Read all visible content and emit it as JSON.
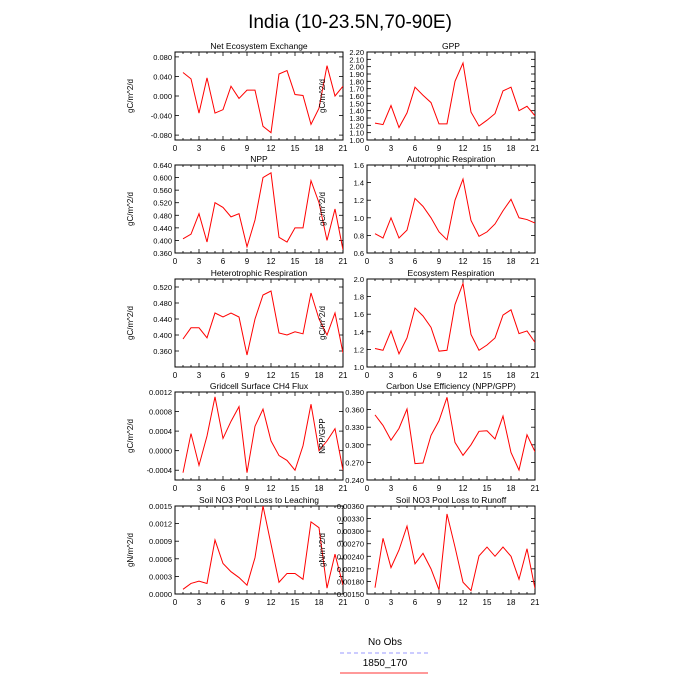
{
  "title": "India (10-23.5N,70-90E)",
  "legend": {
    "entries": [
      {
        "label": "No Obs",
        "color": "#9999ff",
        "dashed": true
      },
      {
        "label": "1850_170",
        "color": "#ff3333",
        "dashed": false
      }
    ],
    "placement": "bottom-center"
  },
  "colors": {
    "series": "#ff0000",
    "axis": "#000000"
  },
  "chart_data": [
    {
      "type": "line",
      "title": "Net Ecosystem Exchange",
      "ylabel": "gC/m^2/d",
      "x": [
        1,
        2,
        3,
        4,
        5,
        6,
        7,
        8,
        9,
        10,
        11,
        12,
        13,
        14,
        15,
        16,
        17,
        18,
        19,
        20,
        21
      ],
      "values": [
        0.048,
        0.035,
        -0.035,
        0.037,
        -0.035,
        -0.028,
        0.02,
        -0.005,
        0.012,
        0.012,
        -0.062,
        -0.075,
        0.045,
        0.052,
        0.003,
        0.001,
        -0.058,
        -0.025,
        0.062,
        0.0,
        0.02
      ],
      "xlim": [
        0,
        21
      ],
      "ylim": [
        -0.09,
        0.09
      ],
      "xticks": [
        0,
        3,
        6,
        9,
        12,
        15,
        18,
        21
      ],
      "yticks": [
        -0.08,
        -0.04,
        0,
        0.04,
        0.08
      ],
      "ytick_labels": [
        "-0.080",
        "-0.040",
        "0.000",
        "0.040",
        "0.080"
      ]
    },
    {
      "type": "line",
      "title": "GPP",
      "ylabel": "gC/m^2/d",
      "x": [
        1,
        2,
        3,
        4,
        5,
        6,
        7,
        8,
        9,
        10,
        11,
        12,
        13,
        14,
        15,
        16,
        17,
        18,
        19,
        20,
        21
      ],
      "values": [
        1.23,
        1.21,
        1.47,
        1.17,
        1.37,
        1.72,
        1.61,
        1.51,
        1.22,
        1.22,
        1.8,
        2.05,
        1.38,
        1.19,
        1.27,
        1.36,
        1.67,
        1.72,
        1.4,
        1.46,
        1.33
      ],
      "xlim": [
        0,
        21
      ],
      "ylim": [
        1.0,
        2.2
      ],
      "xticks": [
        0,
        3,
        6,
        9,
        12,
        15,
        18,
        21
      ],
      "yticks": [
        1.0,
        1.1,
        1.2,
        1.3,
        1.4,
        1.5,
        1.6,
        1.7,
        1.8,
        1.9,
        2.0,
        2.1,
        2.2
      ],
      "ytick_labels": [
        "1.00",
        "1.10",
        "1.20",
        "1.30",
        "1.40",
        "1.50",
        "1.60",
        "1.70",
        "1.80",
        "1.90",
        "2.00",
        "2.10",
        "2.20"
      ]
    },
    {
      "type": "line",
      "title": "NPP",
      "ylabel": "gC/m^2/d",
      "x": [
        1,
        2,
        3,
        4,
        5,
        6,
        7,
        8,
        9,
        10,
        11,
        12,
        13,
        14,
        15,
        16,
        17,
        18,
        19,
        20,
        21
      ],
      "values": [
        0.405,
        0.42,
        0.485,
        0.395,
        0.52,
        0.505,
        0.475,
        0.485,
        0.38,
        0.465,
        0.6,
        0.615,
        0.41,
        0.395,
        0.44,
        0.44,
        0.59,
        0.52,
        0.4,
        0.5,
        0.37
      ],
      "xlim": [
        0,
        21
      ],
      "ylim": [
        0.36,
        0.64
      ],
      "xticks": [
        0,
        3,
        6,
        9,
        12,
        15,
        18,
        21
      ],
      "yticks": [
        0.36,
        0.4,
        0.44,
        0.48,
        0.52,
        0.56,
        0.6,
        0.64
      ],
      "ytick_labels": [
        "0.360",
        "0.400",
        "0.440",
        "0.480",
        "0.520",
        "0.560",
        "0.600",
        "0.640"
      ]
    },
    {
      "type": "line",
      "title": "Autotrophic Respiration",
      "ylabel": "gC/m^2/d",
      "x": [
        1,
        2,
        3,
        4,
        5,
        6,
        7,
        8,
        9,
        10,
        11,
        12,
        13,
        14,
        15,
        16,
        17,
        18,
        19,
        20,
        21
      ],
      "values": [
        0.82,
        0.77,
        1.0,
        0.77,
        0.86,
        1.22,
        1.13,
        1.0,
        0.84,
        0.75,
        1.2,
        1.44,
        0.97,
        0.79,
        0.84,
        0.93,
        1.08,
        1.21,
        1.0,
        0.98,
        0.94
      ],
      "xlim": [
        0,
        21
      ],
      "ylim": [
        0.6,
        1.6
      ],
      "xticks": [
        0,
        3,
        6,
        9,
        12,
        15,
        18,
        21
      ],
      "yticks": [
        0.6,
        0.8,
        1.0,
        1.2,
        1.4,
        1.6
      ],
      "ytick_labels": [
        "0.6",
        "0.8",
        "1.0",
        "1.2",
        "1.4",
        "1.6"
      ]
    },
    {
      "type": "line",
      "title": "Heterotrophic Respiration",
      "ylabel": "gC/m^2/d",
      "x": [
        1,
        2,
        3,
        4,
        5,
        6,
        7,
        8,
        9,
        10,
        11,
        12,
        13,
        14,
        15,
        16,
        17,
        18,
        19,
        20,
        21
      ],
      "values": [
        0.39,
        0.418,
        0.418,
        0.393,
        0.455,
        0.445,
        0.455,
        0.445,
        0.35,
        0.44,
        0.5,
        0.51,
        0.405,
        0.4,
        0.408,
        0.403,
        0.505,
        0.44,
        0.4,
        0.455,
        0.355
      ],
      "xlim": [
        0,
        21
      ],
      "ylim": [
        0.32,
        0.54
      ],
      "xticks": [
        0,
        3,
        6,
        9,
        12,
        15,
        18,
        21
      ],
      "yticks": [
        0.36,
        0.4,
        0.44,
        0.48,
        0.52
      ],
      "ytick_labels": [
        "0.360",
        "0.400",
        "0.440",
        "0.480",
        "0.520"
      ]
    },
    {
      "type": "line",
      "title": "Ecosystem Respiration",
      "ylabel": "gC/m^2/d",
      "x": [
        1,
        2,
        3,
        4,
        5,
        6,
        7,
        8,
        9,
        10,
        11,
        12,
        13,
        14,
        15,
        16,
        17,
        18,
        19,
        20,
        21
      ],
      "values": [
        1.21,
        1.19,
        1.41,
        1.15,
        1.33,
        1.67,
        1.58,
        1.45,
        1.18,
        1.19,
        1.71,
        1.95,
        1.37,
        1.19,
        1.25,
        1.33,
        1.59,
        1.65,
        1.38,
        1.41,
        1.28
      ],
      "xlim": [
        0,
        21
      ],
      "ylim": [
        1.0,
        2.0
      ],
      "xticks": [
        0,
        3,
        6,
        9,
        12,
        15,
        18,
        21
      ],
      "yticks": [
        1.0,
        1.2,
        1.4,
        1.6,
        1.8,
        2.0
      ],
      "ytick_labels": [
        "1.0",
        "1.2",
        "1.4",
        "1.6",
        "1.8",
        "2.0"
      ]
    },
    {
      "type": "line",
      "title": "Gridcell Surface CH4 Flux",
      "ylabel": "gC/m^2/d",
      "x": [
        1,
        2,
        3,
        4,
        5,
        6,
        7,
        8,
        9,
        10,
        11,
        12,
        13,
        14,
        15,
        16,
        17,
        18,
        19,
        20,
        21
      ],
      "values": [
        -0.00045,
        0.00035,
        -0.0003,
        0.0003,
        0.0011,
        0.00025,
        0.0006,
        0.0009,
        -0.00045,
        0.0005,
        0.00085,
        0.0002,
        -0.0001,
        -0.0002,
        -0.0004,
        0.0001,
        0.00095,
        0.0,
        0.0002,
        0.00045,
        -0.0004
      ],
      "xlim": [
        0,
        21
      ],
      "ylim": [
        -0.0006,
        0.0012
      ],
      "xticks": [
        0,
        3,
        6,
        9,
        12,
        15,
        18,
        21
      ],
      "yticks": [
        -0.0004,
        0,
        0.0004,
        0.0008,
        0.0012
      ],
      "ytick_labels": [
        "-0.0004",
        "0.0000",
        "0.0004",
        "0.0008",
        "0.0012"
      ]
    },
    {
      "type": "line",
      "title": "Carbon Use Efficiency (NPP/GPP)",
      "ylabel": "NPP/GPP",
      "x": [
        1,
        2,
        3,
        4,
        5,
        6,
        7,
        8,
        9,
        10,
        11,
        12,
        13,
        14,
        15,
        16,
        17,
        18,
        19,
        20,
        21
      ],
      "values": [
        0.351,
        0.333,
        0.308,
        0.328,
        0.361,
        0.268,
        0.269,
        0.316,
        0.341,
        0.381,
        0.304,
        0.282,
        0.3,
        0.323,
        0.324,
        0.31,
        0.349,
        0.287,
        0.257,
        0.317,
        0.288
      ],
      "xlim": [
        0,
        21
      ],
      "ylim": [
        0.24,
        0.39
      ],
      "xticks": [
        0,
        3,
        6,
        9,
        12,
        15,
        18,
        21
      ],
      "yticks": [
        0.24,
        0.27,
        0.3,
        0.33,
        0.36,
        0.39
      ],
      "ytick_labels": [
        "0.240",
        "0.270",
        "0.300",
        "0.330",
        "0.360",
        "0.390"
      ]
    },
    {
      "type": "line",
      "title": "Soil NO3 Pool Loss to Leaching",
      "ylabel": "gN/m^2/d",
      "x": [
        1,
        2,
        3,
        4,
        5,
        6,
        7,
        8,
        9,
        10,
        11,
        12,
        13,
        14,
        15,
        16,
        17,
        18,
        19,
        20,
        21
      ],
      "values": [
        8e-05,
        0.00018,
        0.00022,
        0.00018,
        0.00092,
        0.00052,
        0.00038,
        0.00028,
        0.00015,
        0.00062,
        0.0015,
        0.00085,
        0.0002,
        0.00035,
        0.00035,
        0.00025,
        0.00123,
        0.00113,
        0.0001,
        0.00068,
        0.00015
      ],
      "xlim": [
        0,
        21
      ],
      "ylim": [
        0,
        0.0015
      ],
      "xticks": [
        0,
        3,
        6,
        9,
        12,
        15,
        18,
        21
      ],
      "yticks": [
        0,
        0.0003,
        0.0006,
        0.0009,
        0.0012,
        0.0015
      ],
      "ytick_labels": [
        "0.0000",
        "0.0003",
        "0.0006",
        "0.0009",
        "0.0012",
        "0.0015"
      ]
    },
    {
      "type": "line",
      "title": "Soil NO3 Pool Loss to Runoff",
      "ylabel": "gN/m^2/d",
      "x": [
        1,
        2,
        3,
        4,
        5,
        6,
        7,
        8,
        9,
        10,
        11,
        12,
        13,
        14,
        15,
        16,
        17,
        18,
        19,
        20,
        21
      ],
      "values": [
        0.00165,
        0.00283,
        0.00213,
        0.00255,
        0.00312,
        0.00222,
        0.00247,
        0.0021,
        0.0016,
        0.00341,
        0.00262,
        0.00178,
        0.00158,
        0.00241,
        0.00262,
        0.0024,
        0.00262,
        0.0024,
        0.00185,
        0.00258,
        0.00163
      ],
      "xlim": [
        0,
        21
      ],
      "ylim": [
        0.0015,
        0.0036
      ],
      "xticks": [
        0,
        3,
        6,
        9,
        12,
        15,
        18,
        21
      ],
      "yticks": [
        0.0015,
        0.0018,
        0.0021,
        0.0024,
        0.0027,
        0.003,
        0.0033,
        0.0036
      ],
      "ytick_labels": [
        "0.00150",
        "0.00180",
        "0.00210",
        "0.00240",
        "0.00270",
        "0.00300",
        "0.00330",
        "0.00360"
      ]
    }
  ]
}
